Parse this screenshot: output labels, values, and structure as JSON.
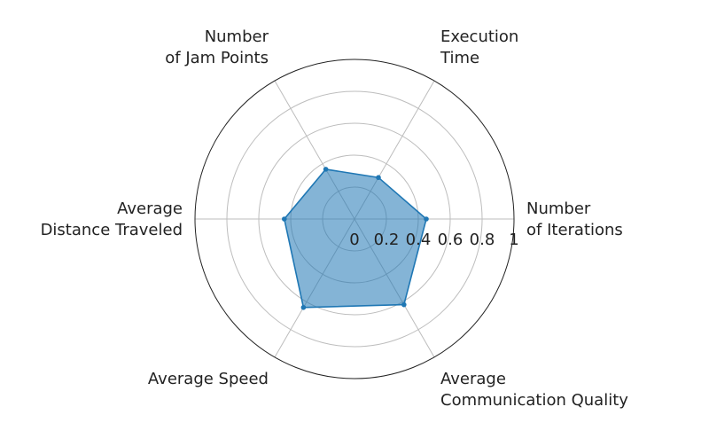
{
  "chart_data": {
    "type": "radar",
    "title": "",
    "categories": [
      [
        "Number",
        "of Iterations"
      ],
      [
        "Execution",
        "Time"
      ],
      [
        "Number",
        "of Jam Points"
      ],
      [
        "Average",
        "Distance Traveled"
      ],
      [
        "Average Speed"
      ],
      [
        "Average",
        "Communication Quality"
      ]
    ],
    "series": [
      {
        "values": [
          0.45,
          0.3,
          0.36,
          0.44,
          0.64,
          0.62
        ],
        "color": "#1f77b4"
      }
    ],
    "radial_ticks": [
      "0",
      "0.2",
      "0.4",
      "0.6",
      "0.8",
      "1"
    ],
    "rlim": [
      0,
      1
    ],
    "grid": true
  }
}
